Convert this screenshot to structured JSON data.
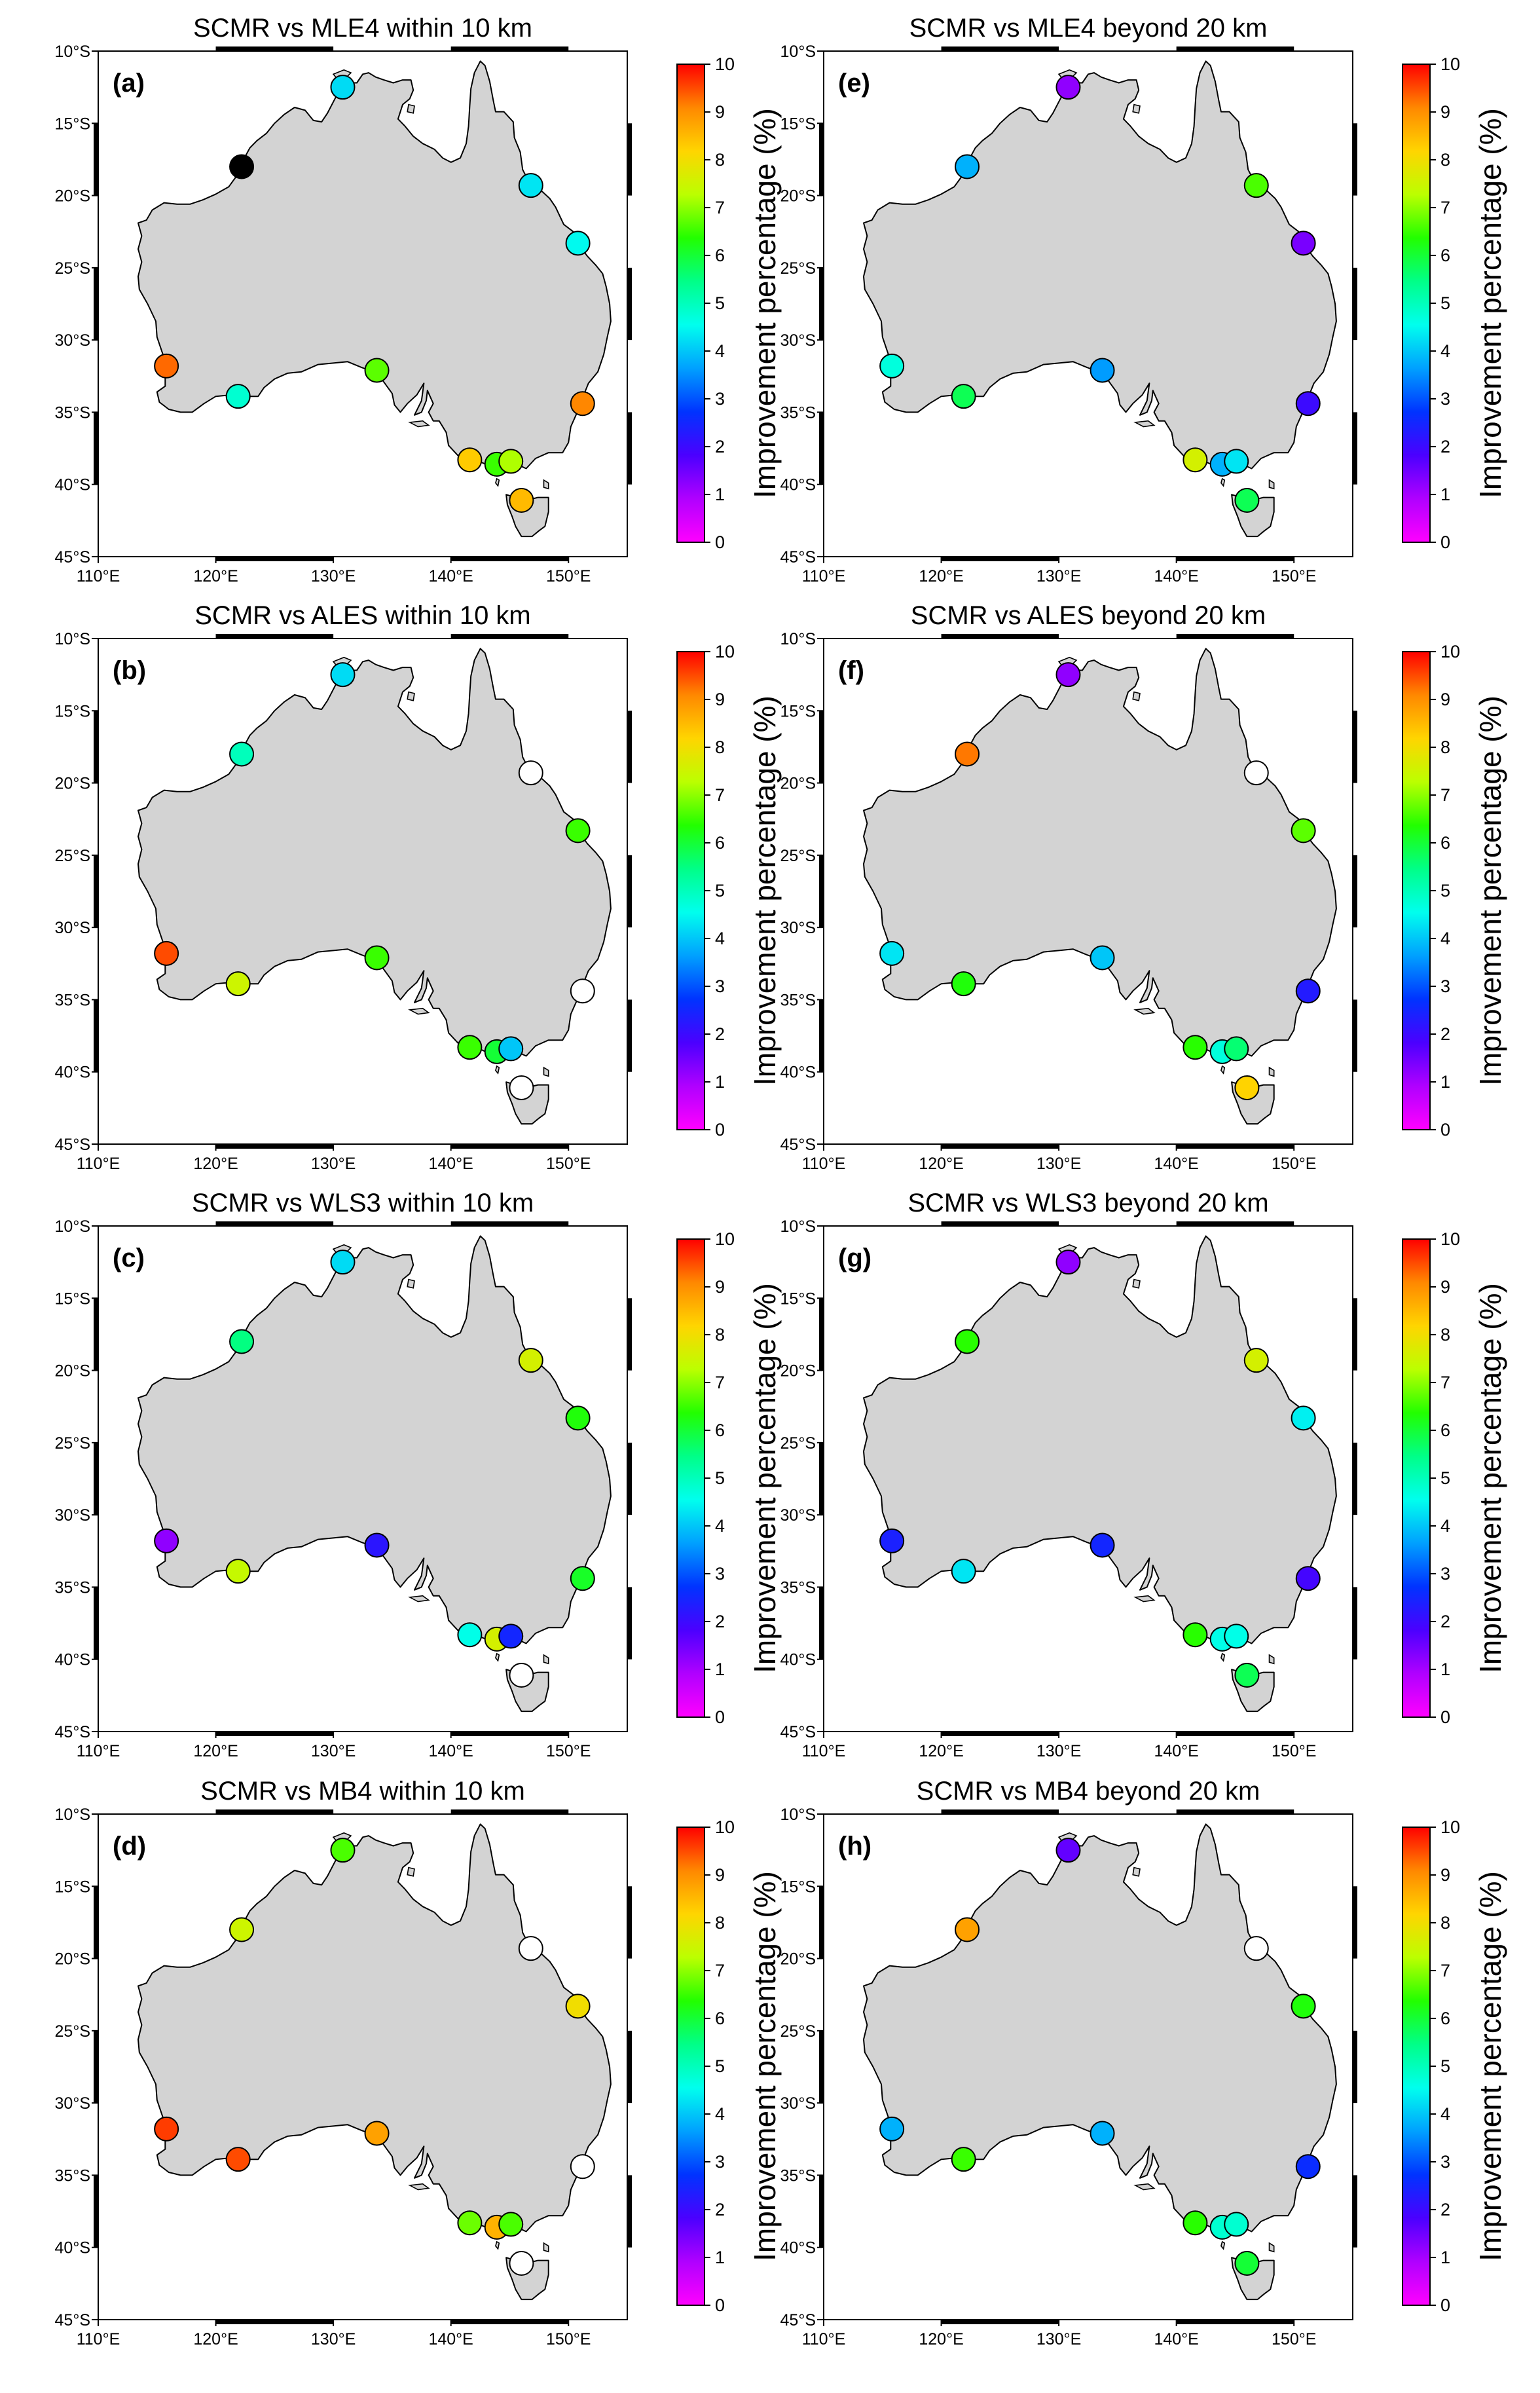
{
  "figure": {
    "colorbar": {
      "label": "Improvement percentage (%)",
      "min": 0,
      "max": 10,
      "ticks": [
        "0",
        "1",
        "2",
        "3",
        "4",
        "5",
        "6",
        "7",
        "8",
        "9",
        "10"
      ],
      "colors": [
        "#ff00ff",
        "#b000ff",
        "#4b00ff",
        "#0033ff",
        "#00a0ff",
        "#00ffee",
        "#00ff88",
        "#22ff00",
        "#bbff00",
        "#ffd500",
        "#ff8800",
        "#ff0000"
      ]
    },
    "axes": {
      "lon_range": [
        110,
        155
      ],
      "lat_range": [
        -45,
        -10
      ],
      "lon_ticks": [
        "110°E",
        "120°E",
        "130°E",
        "140°E",
        "150°E"
      ],
      "lon_tick_values": [
        110,
        120,
        130,
        140,
        150
      ],
      "lat_ticks": [
        "10°S",
        "15°S",
        "20°S",
        "25°S",
        "30°S",
        "35°S",
        "40°S",
        "45°S"
      ],
      "lat_tick_values": [
        -10,
        -15,
        -20,
        -25,
        -30,
        -35,
        -40,
        -45
      ]
    },
    "land_color": "#d3d3d3",
    "panels": [
      {
        "tag": "(a)",
        "title": "SCMR vs MLE4 within 10 km",
        "points": [
          {
            "lon": 130.8,
            "lat": -12.5,
            "value": 4.2
          },
          {
            "lon": 122.2,
            "lat": -18.0,
            "value": null,
            "color": "#000000"
          },
          {
            "lon": 146.8,
            "lat": -19.3,
            "value": 4.3
          },
          {
            "lon": 150.8,
            "lat": -23.3,
            "value": 4.5
          },
          {
            "lon": 115.8,
            "lat": -31.8,
            "value": 9.3
          },
          {
            "lon": 121.9,
            "lat": -33.9,
            "value": 4.8
          },
          {
            "lon": 133.7,
            "lat": -32.1,
            "value": 6.7
          },
          {
            "lon": 151.2,
            "lat": -34.4,
            "value": 9.1
          },
          {
            "lon": 141.6,
            "lat": -38.3,
            "value": 8.3
          },
          {
            "lon": 143.9,
            "lat": -38.6,
            "value": 6.5
          },
          {
            "lon": 145.1,
            "lat": -38.4,
            "value": 7.2
          },
          {
            "lon": 146.0,
            "lat": -41.1,
            "value": 8.5
          }
        ]
      },
      {
        "tag": "(b)",
        "title": "SCMR vs ALES within 10 km",
        "points": [
          {
            "lon": 130.8,
            "lat": -12.5,
            "value": 4.2
          },
          {
            "lon": 122.2,
            "lat": -18.0,
            "value": 5.0
          },
          {
            "lon": 146.8,
            "lat": -19.3,
            "value": null,
            "color": "#ffffff"
          },
          {
            "lon": 150.8,
            "lat": -23.3,
            "value": 6.5
          },
          {
            "lon": 115.8,
            "lat": -31.8,
            "value": 9.5
          },
          {
            "lon": 121.9,
            "lat": -33.9,
            "value": 7.5
          },
          {
            "lon": 133.7,
            "lat": -32.1,
            "value": 6.5
          },
          {
            "lon": 151.2,
            "lat": -34.4,
            "value": null,
            "color": "#ffffff"
          },
          {
            "lon": 141.6,
            "lat": -38.3,
            "value": 6.5
          },
          {
            "lon": 143.9,
            "lat": -38.6,
            "value": 6.0
          },
          {
            "lon": 145.1,
            "lat": -38.4,
            "value": 4.0
          },
          {
            "lon": 146.0,
            "lat": -41.1,
            "value": null,
            "color": "#ffffff"
          }
        ]
      },
      {
        "tag": "(c)",
        "title": "SCMR vs WLS3 within 10 km",
        "points": [
          {
            "lon": 130.8,
            "lat": -12.5,
            "value": 4.2
          },
          {
            "lon": 122.2,
            "lat": -18.0,
            "value": 5.5
          },
          {
            "lon": 146.8,
            "lat": -19.3,
            "value": 7.6
          },
          {
            "lon": 150.8,
            "lat": -23.3,
            "value": 6.3
          },
          {
            "lon": 115.8,
            "lat": -31.8,
            "value": 1.2
          },
          {
            "lon": 121.9,
            "lat": -33.9,
            "value": 7.4
          },
          {
            "lon": 133.7,
            "lat": -32.1,
            "value": 2.2
          },
          {
            "lon": 151.2,
            "lat": -34.4,
            "value": 6.1
          },
          {
            "lon": 141.6,
            "lat": -38.3,
            "value": 4.6
          },
          {
            "lon": 143.9,
            "lat": -38.6,
            "value": 7.6
          },
          {
            "lon": 145.1,
            "lat": -38.4,
            "value": 2.5
          },
          {
            "lon": 146.0,
            "lat": -41.1,
            "value": null,
            "color": "#ffffff"
          }
        ]
      },
      {
        "tag": "(d)",
        "title": "SCMR vs MB4 within 10 km",
        "points": [
          {
            "lon": 130.8,
            "lat": -12.5,
            "value": 6.6
          },
          {
            "lon": 122.2,
            "lat": -18.0,
            "value": 7.5
          },
          {
            "lon": 146.8,
            "lat": -19.3,
            "value": null,
            "color": "#ffffff"
          },
          {
            "lon": 150.8,
            "lat": -23.3,
            "value": 8.0
          },
          {
            "lon": 115.8,
            "lat": -31.8,
            "value": 9.6
          },
          {
            "lon": 121.9,
            "lat": -33.9,
            "value": 9.5
          },
          {
            "lon": 133.7,
            "lat": -32.1,
            "value": 8.8
          },
          {
            "lon": 151.2,
            "lat": -34.4,
            "value": null,
            "color": "#ffffff"
          },
          {
            "lon": 141.6,
            "lat": -38.3,
            "value": 6.8
          },
          {
            "lon": 143.9,
            "lat": -38.6,
            "value": 8.6
          },
          {
            "lon": 145.1,
            "lat": -38.4,
            "value": 6.6
          },
          {
            "lon": 146.0,
            "lat": -41.1,
            "value": null,
            "color": "#ffffff"
          }
        ]
      },
      {
        "tag": "(e)",
        "title": "SCMR vs MLE4 beyond 20 km",
        "points": [
          {
            "lon": 130.8,
            "lat": -12.5,
            "value": 1.2
          },
          {
            "lon": 122.2,
            "lat": -18.0,
            "value": 3.8
          },
          {
            "lon": 146.8,
            "lat": -19.3,
            "value": 6.6
          },
          {
            "lon": 150.8,
            "lat": -23.3,
            "value": 1.4
          },
          {
            "lon": 115.8,
            "lat": -31.8,
            "value": 4.7
          },
          {
            "lon": 121.9,
            "lat": -33.9,
            "value": 5.8
          },
          {
            "lon": 133.7,
            "lat": -32.1,
            "value": 3.6
          },
          {
            "lon": 151.2,
            "lat": -34.4,
            "value": 2.0
          },
          {
            "lon": 141.6,
            "lat": -38.3,
            "value": 7.6
          },
          {
            "lon": 143.9,
            "lat": -38.6,
            "value": 3.8
          },
          {
            "lon": 145.1,
            "lat": -38.4,
            "value": 4.3
          },
          {
            "lon": 146.0,
            "lat": -41.1,
            "value": 5.8
          }
        ]
      },
      {
        "tag": "(f)",
        "title": "SCMR vs ALES beyond 20 km",
        "points": [
          {
            "lon": 130.8,
            "lat": -12.5,
            "value": 1.2
          },
          {
            "lon": 122.2,
            "lat": -18.0,
            "value": 9.2
          },
          {
            "lon": 146.8,
            "lat": -19.3,
            "value": null,
            "color": "#ffffff"
          },
          {
            "lon": 150.8,
            "lat": -23.3,
            "value": 6.7
          },
          {
            "lon": 115.8,
            "lat": -31.8,
            "value": 4.3
          },
          {
            "lon": 121.9,
            "lat": -33.9,
            "value": 6.3
          },
          {
            "lon": 133.7,
            "lat": -32.1,
            "value": 4.0
          },
          {
            "lon": 151.2,
            "lat": -34.4,
            "value": 2.3
          },
          {
            "lon": 141.6,
            "lat": -38.3,
            "value": 6.4
          },
          {
            "lon": 143.9,
            "lat": -38.6,
            "value": 4.7
          },
          {
            "lon": 145.1,
            "lat": -38.4,
            "value": 5.6
          },
          {
            "lon": 146.0,
            "lat": -41.1,
            "value": 8.2
          }
        ]
      },
      {
        "tag": "(g)",
        "title": "SCMR vs WLS3 beyond 20 km",
        "points": [
          {
            "lon": 130.8,
            "lat": -12.5,
            "value": 1.2
          },
          {
            "lon": 122.2,
            "lat": -18.0,
            "value": 6.4
          },
          {
            "lon": 146.8,
            "lat": -19.3,
            "value": 7.6
          },
          {
            "lon": 150.8,
            "lat": -23.3,
            "value": 4.4
          },
          {
            "lon": 115.8,
            "lat": -31.8,
            "value": 2.4
          },
          {
            "lon": 121.9,
            "lat": -33.9,
            "value": 4.3
          },
          {
            "lon": 133.7,
            "lat": -32.1,
            "value": 2.5
          },
          {
            "lon": 151.2,
            "lat": -34.4,
            "value": 1.9
          },
          {
            "lon": 141.6,
            "lat": -38.3,
            "value": 6.4
          },
          {
            "lon": 143.9,
            "lat": -38.6,
            "value": 4.6
          },
          {
            "lon": 145.1,
            "lat": -38.4,
            "value": 4.6
          },
          {
            "lon": 146.0,
            "lat": -41.1,
            "value": 5.8
          }
        ]
      },
      {
        "tag": "(h)",
        "title": "SCMR vs MB4 beyond 20 km",
        "points": [
          {
            "lon": 130.8,
            "lat": -12.5,
            "value": 1.6
          },
          {
            "lon": 122.2,
            "lat": -18.0,
            "value": 8.8
          },
          {
            "lon": 146.8,
            "lat": -19.3,
            "value": null,
            "color": "#ffffff"
          },
          {
            "lon": 150.8,
            "lat": -23.3,
            "value": 6.3
          },
          {
            "lon": 115.8,
            "lat": -31.8,
            "value": 3.8
          },
          {
            "lon": 121.9,
            "lat": -33.9,
            "value": 6.5
          },
          {
            "lon": 133.7,
            "lat": -32.1,
            "value": 3.8
          },
          {
            "lon": 151.2,
            "lat": -34.4,
            "value": 2.6
          },
          {
            "lon": 141.6,
            "lat": -38.3,
            "value": 6.4
          },
          {
            "lon": 143.9,
            "lat": -38.6,
            "value": 4.8
          },
          {
            "lon": 145.1,
            "lat": -38.4,
            "value": 4.8
          },
          {
            "lon": 146.0,
            "lat": -41.1,
            "value": 6.0
          }
        ]
      }
    ]
  }
}
